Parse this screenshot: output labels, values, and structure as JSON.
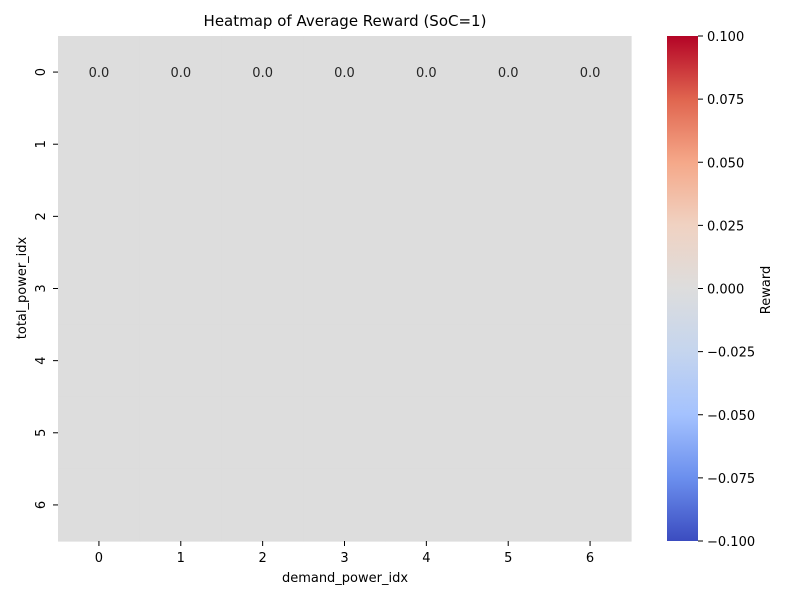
{
  "chart_data": {
    "type": "heatmap",
    "title": "Heatmap of Average Reward (SoC=1)",
    "xlabel": "demand_power_idx",
    "ylabel": "total_power_idx",
    "x_categories": [
      "0",
      "1",
      "2",
      "3",
      "4",
      "5",
      "6"
    ],
    "y_categories": [
      "0",
      "1",
      "2",
      "3",
      "4",
      "5",
      "6"
    ],
    "values": [
      [
        0.0,
        0.0,
        0.0,
        0.0,
        0.0,
        0.0,
        0.0
      ],
      [
        null,
        null,
        null,
        null,
        null,
        null,
        null
      ],
      [
        null,
        null,
        null,
        null,
        null,
        null,
        null
      ],
      [
        null,
        null,
        null,
        null,
        null,
        null,
        null
      ],
      [
        null,
        null,
        null,
        null,
        null,
        null,
        null
      ],
      [
        null,
        null,
        null,
        null,
        null,
        null,
        null
      ],
      [
        null,
        null,
        null,
        null,
        null,
        null,
        null
      ]
    ],
    "annotations": [
      [
        "0.0",
        "0.0",
        "0.0",
        "0.0",
        "0.0",
        "0.0",
        "0.0"
      ],
      [
        "",
        "",
        "",
        "",
        "",
        "",
        ""
      ],
      [
        "",
        "",
        "",
        "",
        "",
        "",
        ""
      ],
      [
        "",
        "",
        "",
        "",
        "",
        "",
        ""
      ],
      [
        "",
        "",
        "",
        "",
        "",
        "",
        ""
      ],
      [
        "",
        "",
        "",
        "",
        "",
        "",
        ""
      ],
      [
        "",
        "",
        "",
        "",
        "",
        "",
        ""
      ]
    ],
    "fill_color": "#dddddd",
    "colormap": "coolwarm",
    "colorbar": {
      "label": "Reward",
      "range": [
        -0.1,
        0.1
      ],
      "ticks": [
        "0.100",
        "0.075",
        "0.050",
        "0.025",
        "0.000",
        "−0.025",
        "−0.050",
        "−0.075",
        "−0.100"
      ],
      "colors": [
        "#b40426",
        "#e0654f",
        "#f5a889",
        "#f0d2c2",
        "#dddddd",
        "#c5d5ee",
        "#a4c2fe",
        "#6b8fee",
        "#3b4cc0"
      ]
    },
    "grid": false,
    "legend": "none"
  }
}
